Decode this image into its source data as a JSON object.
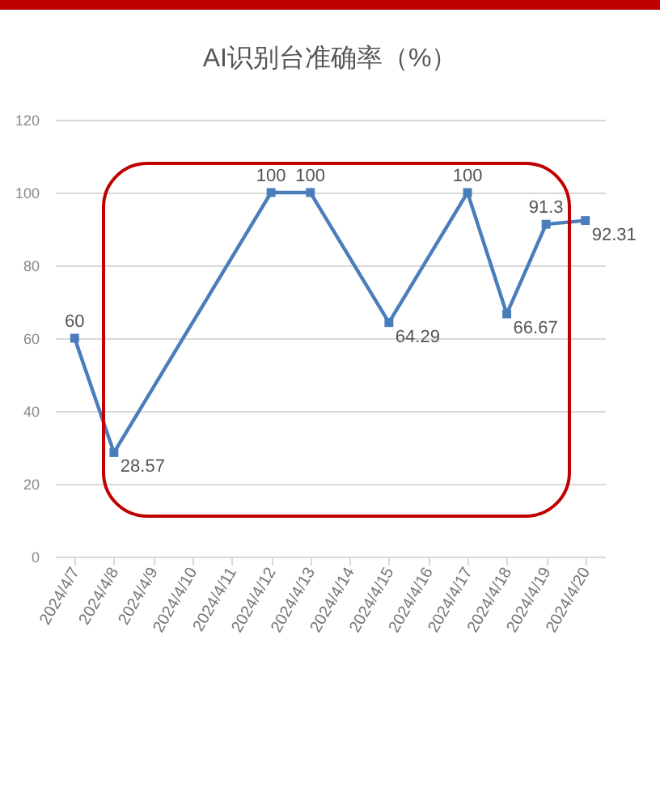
{
  "chart_data": {
    "type": "line",
    "title": "AI识别台准确率（%）",
    "categories": [
      "2024/4/7",
      "2024/4/8",
      "2024/4/9",
      "2024/4/10",
      "2024/4/11",
      "2024/4/12",
      "2024/4/13",
      "2024/4/14",
      "2024/4/15",
      "2024/4/16",
      "2024/4/17",
      "2024/4/18",
      "2024/4/19",
      "2024/4/20"
    ],
    "series": [
      {
        "color": "#4a7ebb",
        "values": [
          60,
          28.57,
          null,
          null,
          null,
          100,
          100,
          null,
          64.29,
          null,
          100,
          66.67,
          91.3,
          92.31
        ]
      }
    ],
    "ylim": [
      0,
      120
    ],
    "yticks": [
      0,
      20,
      40,
      60,
      80,
      100,
      120
    ],
    "grid": "y",
    "marker": "square",
    "data_labels": true
  }
}
